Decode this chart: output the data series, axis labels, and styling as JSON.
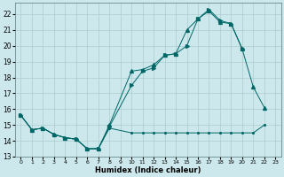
{
  "background_color": "#cce8ec",
  "grid_color": "#aacccc",
  "line_color": "#006666",
  "xlabel": "Humidex (Indice chaleur)",
  "xlim": [
    -0.5,
    23.5
  ],
  "ylim": [
    13,
    22.7
  ],
  "yticks": [
    13,
    14,
    15,
    16,
    17,
    18,
    19,
    20,
    21,
    22
  ],
  "xticks": [
    0,
    1,
    2,
    3,
    4,
    5,
    6,
    7,
    8,
    9,
    10,
    11,
    12,
    13,
    14,
    15,
    16,
    17,
    18,
    19,
    20,
    21,
    22,
    23
  ],
  "s1_x": [
    0,
    1,
    2,
    3,
    4,
    5,
    6,
    7,
    8,
    10,
    11,
    12,
    13,
    14,
    15,
    16,
    17,
    18,
    19,
    20,
    21,
    22
  ],
  "s1_y": [
    15.6,
    14.7,
    14.8,
    14.4,
    14.2,
    14.1,
    13.5,
    13.5,
    14.8,
    14.5,
    14.5,
    14.5,
    14.5,
    14.5,
    14.5,
    14.5,
    14.5,
    14.5,
    14.5,
    14.5,
    14.5,
    15.0
  ],
  "s2_x": [
    0,
    1,
    2,
    3,
    4,
    5,
    6,
    7,
    8,
    10,
    11,
    12,
    13,
    14,
    15,
    16,
    17,
    18,
    19,
    20,
    21,
    22
  ],
  "s2_y": [
    15.6,
    14.7,
    14.8,
    14.4,
    14.2,
    14.1,
    13.5,
    13.5,
    15.0,
    18.4,
    18.5,
    18.8,
    19.4,
    19.5,
    21.0,
    21.7,
    22.2,
    21.5,
    21.4,
    19.8,
    17.4,
    16.1
  ],
  "s3_x": [
    0,
    1,
    2,
    3,
    4,
    5,
    6,
    7,
    8,
    10,
    11,
    12,
    13,
    14,
    15,
    16,
    17,
    18,
    19,
    20
  ],
  "s3_y": [
    15.6,
    14.7,
    14.8,
    14.4,
    14.2,
    14.1,
    13.5,
    13.5,
    14.9,
    17.5,
    18.4,
    18.6,
    19.4,
    19.5,
    20.0,
    21.7,
    22.3,
    21.6,
    21.4,
    19.8
  ]
}
